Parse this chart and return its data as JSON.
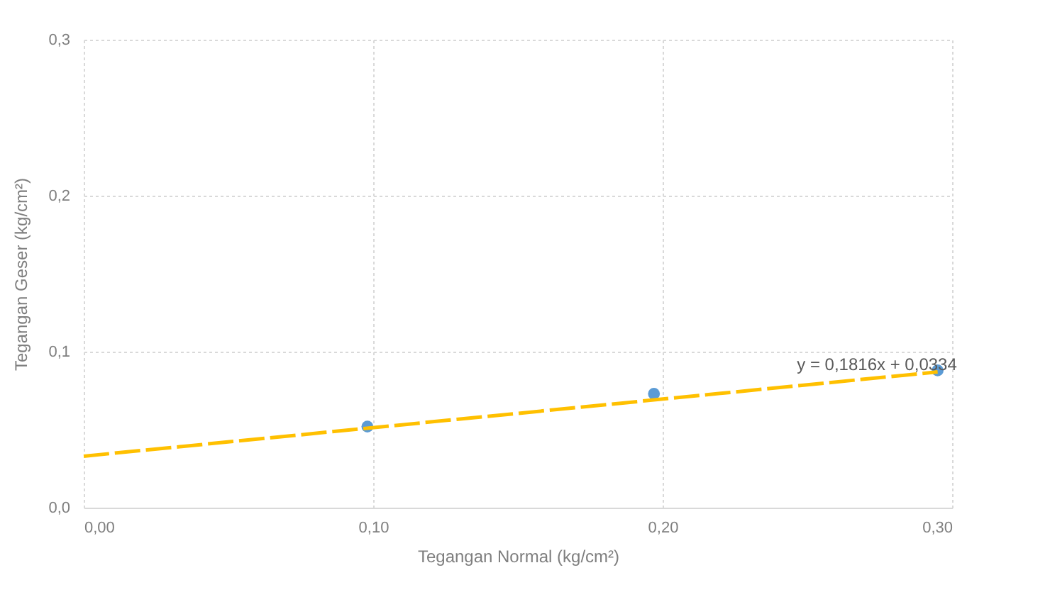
{
  "chart_data": {
    "type": "scatter",
    "xlabel": "Tegangan Normal (kg/cm²)",
    "ylabel": "Tegangan Geser (kg/cm²)",
    "series": [
      {
        "color": "#5b9bd5",
        "x": [
          0.098,
          0.197,
          0.295
        ],
        "values": [
          0.052,
          0.073,
          0.088
        ]
      },
      {
        "type": "line",
        "color": "#ffc000",
        "line_style": "dashed",
        "marker": "none",
        "x": [
          0,
          0.295
        ],
        "values": [
          0.033,
          0.087
        ]
      }
    ],
    "xlim": [
      0,
      0.3
    ],
    "ylim": [
      0,
      0.3
    ],
    "xticks": [
      {
        "value": 0,
        "label": "0,00"
      },
      {
        "value": 0.1,
        "label": "0,10"
      },
      {
        "value": 0.2,
        "label": "0,20"
      },
      {
        "value": 0.3,
        "label": "0,30"
      }
    ],
    "yticks": [
      {
        "value": 0,
        "label": "0,0"
      },
      {
        "value": 0.1,
        "label": "0,1"
      },
      {
        "value": 0.2,
        "label": "0,2"
      },
      {
        "value": 0.3,
        "label": "0,3"
      }
    ],
    "grid": true,
    "annotations": [
      "y = 0,1816x + 0,0334"
    ]
  }
}
